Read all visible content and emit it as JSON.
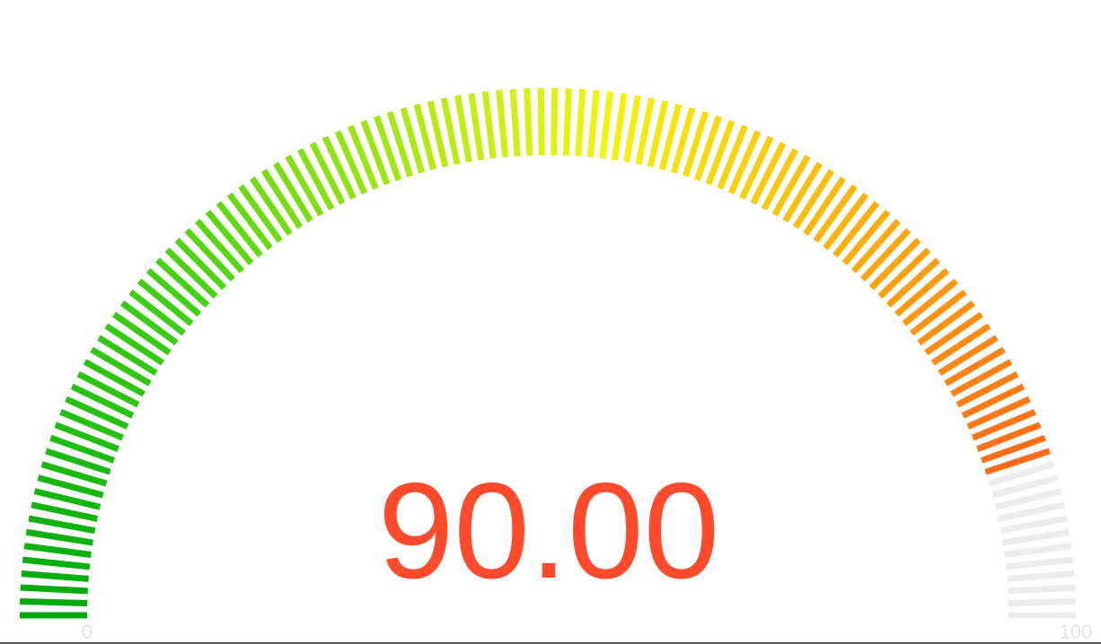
{
  "chart_data": {
    "type": "gauge",
    "value": 90,
    "value_label": "90.00",
    "min": 0,
    "max": 100,
    "min_label": "0",
    "max_label": "100",
    "value_color": "#ff4b2b",
    "empty_color": "#ececec",
    "label_color": "#e2e2e2",
    "gradient_stops": [
      {
        "at": 0.0,
        "color": "#00a80f"
      },
      {
        "at": 0.25,
        "color": "#3fd112"
      },
      {
        "at": 0.5,
        "color": "#c4ee12"
      },
      {
        "at": 0.6,
        "color": "#f1f50a"
      },
      {
        "at": 0.78,
        "color": "#ffb40c"
      },
      {
        "at": 1.0,
        "color": "#ff6a18"
      }
    ]
  }
}
